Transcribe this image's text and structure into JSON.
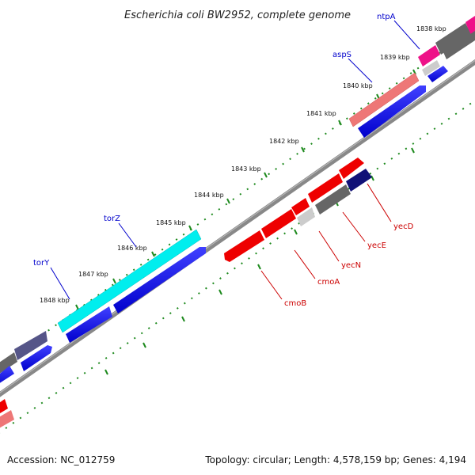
{
  "title": "Escherichia coli BW2952, complete genome",
  "accession": "Accession: NC_012759",
  "topology": "Topology: circular; Length: 4,578,159 bp; Genes: 4,194",
  "kbp_labels": [
    "1838 kbp",
    "1839 kbp",
    "1840 kbp",
    "1841 kbp",
    "1842 kbp",
    "1843 kbp",
    "1844 kbp",
    "1845 kbp",
    "1846 kbp",
    "1847 kbp",
    "1848 kbp"
  ],
  "genes": {
    "ntpA": "ntpA",
    "aspS": "aspS",
    "torZ": "torZ",
    "torY": "torY",
    "yecD": "yecD",
    "yecE": "yecE",
    "yecN": "yecN",
    "cmoA": "cmoA",
    "cmoB": "cmoB"
  },
  "colors": {
    "forward_label": "#0000cc",
    "reverse_label": "#cc0000",
    "tick": "#1e8a1e",
    "backbone": "#888888",
    "cds_blue": "#0000ee",
    "cds_red": "#ee0000",
    "cds_cyan": "#00f0f0",
    "cds_pink": "#f08080",
    "cds_gray": "#666666",
    "cds_magenta": "#ee1188",
    "cds_navy": "#111177",
    "cds_slate": "#555588"
  }
}
